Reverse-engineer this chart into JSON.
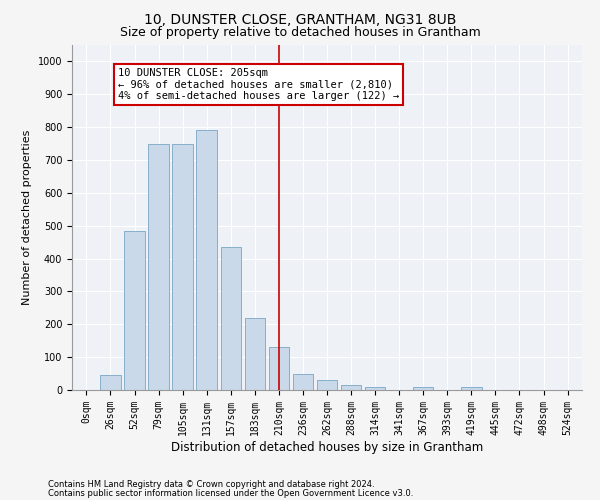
{
  "title": "10, DUNSTER CLOSE, GRANTHAM, NG31 8UB",
  "subtitle": "Size of property relative to detached houses in Grantham",
  "xlabel": "Distribution of detached houses by size in Grantham",
  "ylabel": "Number of detached properties",
  "categories": [
    "0sqm",
    "26sqm",
    "52sqm",
    "79sqm",
    "105sqm",
    "131sqm",
    "157sqm",
    "183sqm",
    "210sqm",
    "236sqm",
    "262sqm",
    "288sqm",
    "314sqm",
    "341sqm",
    "367sqm",
    "393sqm",
    "419sqm",
    "445sqm",
    "472sqm",
    "498sqm",
    "524sqm"
  ],
  "values": [
    0,
    45,
    485,
    750,
    750,
    790,
    435,
    220,
    130,
    50,
    30,
    15,
    10,
    0,
    10,
    0,
    10,
    0,
    0,
    0,
    0
  ],
  "bar_color": "#c9d9ea",
  "bar_edge_color": "#6699bb",
  "vline_x_index": 8,
  "vline_color": "#cc0000",
  "annotation_line1": "10 DUNSTER CLOSE: 205sqm",
  "annotation_line2": "← 96% of detached houses are smaller (2,810)",
  "annotation_line3": "4% of semi-detached houses are larger (122) →",
  "annotation_box_color": "#cc0000",
  "ylim": [
    0,
    1050
  ],
  "yticks": [
    0,
    100,
    200,
    300,
    400,
    500,
    600,
    700,
    800,
    900,
    1000
  ],
  "footer1": "Contains HM Land Registry data © Crown copyright and database right 2024.",
  "footer2": "Contains public sector information licensed under the Open Government Licence v3.0.",
  "bg_color": "#eef2f7",
  "grid_color": "#ffffff",
  "fig_bg_color": "#f5f5f5",
  "title_fontsize": 10,
  "subtitle_fontsize": 9,
  "tick_fontsize": 7,
  "ylabel_fontsize": 8,
  "xlabel_fontsize": 8.5,
  "footer_fontsize": 6,
  "annotation_fontsize": 7.5
}
